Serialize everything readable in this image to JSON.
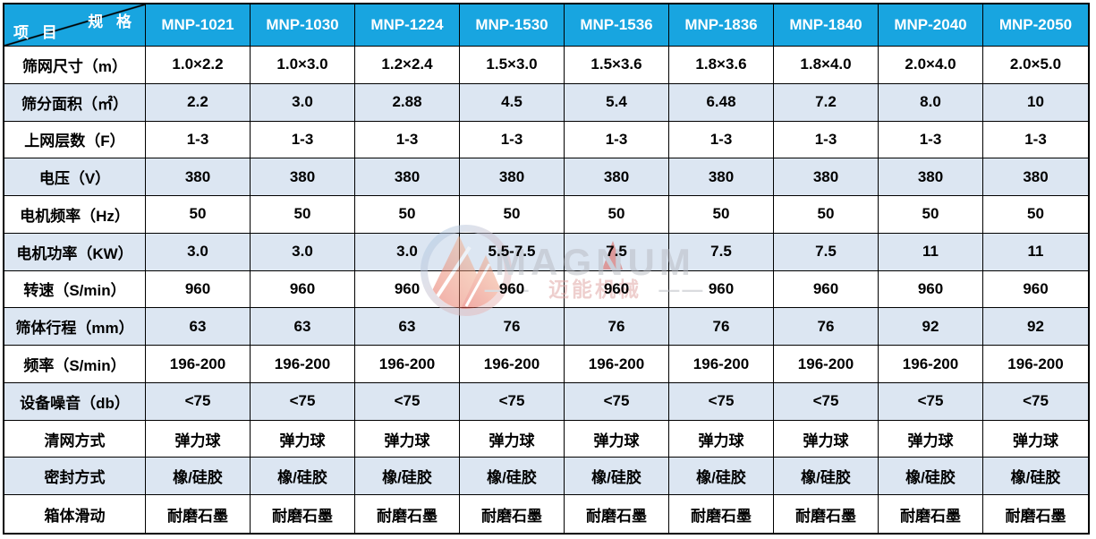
{
  "colors": {
    "header_bg": "#18a5e0",
    "alt_row_bg": "#dce6f2",
    "border": "#000000",
    "cell_text": "#000000",
    "header_text": "#ffffff",
    "watermark_gray": "#b7bac1",
    "watermark_red": "#dd4f44",
    "watermark_pink": "#dfa09e",
    "watermark_ring_blue": "#a9cdea",
    "watermark_ring_pink": "#f2b4ae"
  },
  "corner": {
    "spec_label": "规 格",
    "item_label": "项 目"
  },
  "models": [
    "MNP-1021",
    "MNP-1030",
    "MNP-1224",
    "MNP-1530",
    "MNP-1536",
    "MNP-1836",
    "MNP-1840",
    "MNP-2040",
    "MNP-2050"
  ],
  "rows": [
    {
      "label": "筛网尺寸（m）",
      "values": [
        "1.0×2.2",
        "1.0×3.0",
        "1.2×2.4",
        "1.5×3.0",
        "1.5×3.6",
        "1.8×3.6",
        "1.8×4.0",
        "2.0×4.0",
        "2.0×5.0"
      ]
    },
    {
      "label": "筛分面积（㎡）",
      "values": [
        "2.2",
        "3.0",
        "2.88",
        "4.5",
        "5.4",
        "6.48",
        "7.2",
        "8.0",
        "10"
      ]
    },
    {
      "label": "上网层数（F）",
      "values": [
        "1-3",
        "1-3",
        "1-3",
        "1-3",
        "1-3",
        "1-3",
        "1-3",
        "1-3",
        "1-3"
      ]
    },
    {
      "label": "电压（V）",
      "values": [
        "380",
        "380",
        "380",
        "380",
        "380",
        "380",
        "380",
        "380",
        "380"
      ]
    },
    {
      "label": "电机频率（Hz）",
      "values": [
        "50",
        "50",
        "50",
        "50",
        "50",
        "50",
        "50",
        "50",
        "50"
      ]
    },
    {
      "label": "电机功率（KW）",
      "values": [
        "3.0",
        "3.0",
        "3.0",
        "5.5-7.5",
        "7.5",
        "7.5",
        "7.5",
        "11",
        "11"
      ]
    },
    {
      "label": "转速（S/min）",
      "values": [
        "960",
        "960",
        "960",
        "960",
        "960",
        "960",
        "960",
        "960",
        "960"
      ]
    },
    {
      "label": "筛体行程（mm）",
      "values": [
        "63",
        "63",
        "63",
        "76",
        "76",
        "76",
        "76",
        "92",
        "92"
      ]
    },
    {
      "label": "频率（S/min）",
      "values": [
        "196-200",
        "196-200",
        "196-200",
        "196-200",
        "196-200",
        "196-200",
        "196-200",
        "196-200",
        "196-200"
      ]
    },
    {
      "label": "设备噪音（db）",
      "values": [
        "<75",
        "<75",
        "<75",
        "<75",
        "<75",
        "<75",
        "<75",
        "<75",
        "<75"
      ]
    },
    {
      "label": "清网方式",
      "values": [
        "弹力球",
        "弹力球",
        "弹力球",
        "弹力球",
        "弹力球",
        "弹力球",
        "弹力球",
        "弹力球",
        "弹力球"
      ]
    },
    {
      "label": "密封方式",
      "values": [
        "橡/硅胶",
        "橡/硅胶",
        "橡/硅胶",
        "橡/硅胶",
        "橡/硅胶",
        "橡/硅胶",
        "橡/硅胶",
        "橡/硅胶",
        "橡/硅胶"
      ]
    },
    {
      "label": "箱体滑动",
      "values": [
        "耐磨石墨",
        "耐磨石墨",
        "耐磨石墨",
        "耐磨石墨",
        "耐磨石墨",
        "耐磨石墨",
        "耐磨石墨",
        "耐磨石墨",
        "耐磨石墨"
      ]
    }
  ],
  "watermark": {
    "brand": "MAGNUM",
    "tagline_prefix": "——",
    "tagline": "迈能机械",
    "tagline_suffix": "——"
  }
}
